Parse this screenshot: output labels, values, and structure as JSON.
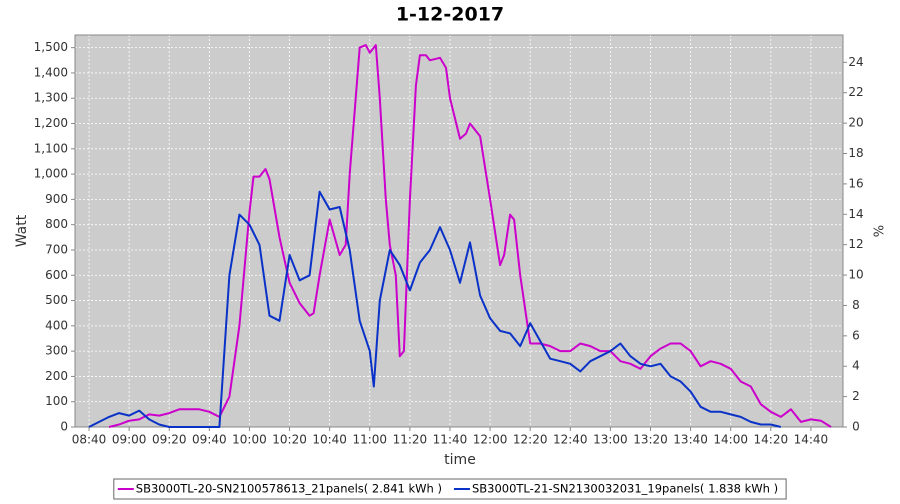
{
  "chart_data": {
    "type": "line",
    "title": "1-12-2017",
    "x_label": "time",
    "y_label": "Watt",
    "y2_label": "%",
    "xlim": [
      "08:33",
      "14:56"
    ],
    "xticks": [
      "08:40",
      "09:00",
      "09:20",
      "09:40",
      "10:00",
      "10:20",
      "10:40",
      "11:00",
      "11:20",
      "11:40",
      "12:00",
      "12:20",
      "12:40",
      "13:00",
      "13:20",
      "13:40",
      "14:00",
      "14:20",
      "14:40"
    ],
    "ylim": [
      0,
      1550
    ],
    "yticks": [
      0,
      100,
      200,
      300,
      400,
      500,
      600,
      700,
      800,
      900,
      {
        "value": 1000,
        "label": "1,000"
      },
      {
        "value": 1100,
        "label": "1,100"
      },
      {
        "value": 1200,
        "label": "1,200"
      },
      {
        "value": 1300,
        "label": "1,300"
      },
      {
        "value": 1400,
        "label": "1,400"
      },
      {
        "value": 1500,
        "label": "1,500"
      }
    ],
    "y2lim": [
      0,
      25.8
    ],
    "y2ticks": [
      0,
      2,
      4,
      6,
      8,
      10,
      12,
      14,
      16,
      18,
      20,
      22,
      24
    ],
    "grid": true,
    "legend": "bottom",
    "series": [
      {
        "name": "SB3000TL-20-SN2100578613_21panels( 2.841 kWh )",
        "color": "#cc00cc",
        "x": [
          "08:50",
          "08:55",
          "09:00",
          "09:05",
          "09:10",
          "09:15",
          "09:20",
          "09:25",
          "09:30",
          "09:35",
          "09:40",
          "09:45",
          "09:50",
          "09:55",
          "10:00",
          "10:02",
          "10:05",
          "10:08",
          "10:10",
          "10:15",
          "10:20",
          "10:25",
          "10:30",
          "10:32",
          "10:35",
          "10:40",
          "10:45",
          "10:48",
          "10:50",
          "10:55",
          "10:58",
          "11:00",
          "11:03",
          "11:05",
          "11:08",
          "11:10",
          "11:13",
          "11:15",
          "11:17",
          "11:20",
          "11:23",
          "11:25",
          "11:28",
          "11:30",
          "11:35",
          "11:38",
          "11:40",
          "11:45",
          "11:48",
          "11:50",
          "11:55",
          "12:00",
          "12:05",
          "12:07",
          "12:10",
          "12:12",
          "12:15",
          "12:20",
          "12:25",
          "12:30",
          "12:35",
          "12:40",
          "12:45",
          "12:50",
          "12:55",
          "13:00",
          "13:05",
          "13:10",
          "13:15",
          "13:20",
          "13:25",
          "13:30",
          "13:35",
          "13:40",
          "13:45",
          "13:50",
          "13:55",
          "14:00",
          "14:05",
          "14:10",
          "14:15",
          "14:20",
          "14:25",
          "14:30",
          "14:35",
          "14:40",
          "14:45",
          "14:50"
        ],
        "values": [
          0,
          10,
          25,
          30,
          50,
          45,
          55,
          70,
          70,
          70,
          60,
          40,
          120,
          400,
          850,
          990,
          990,
          1020,
          980,
          750,
          570,
          490,
          440,
          450,
          600,
          820,
          680,
          720,
          1000,
          1500,
          1510,
          1480,
          1510,
          1300,
          900,
          720,
          600,
          280,
          300,
          900,
          1350,
          1470,
          1470,
          1450,
          1460,
          1420,
          1300,
          1140,
          1160,
          1200,
          1150,
          900,
          640,
          680,
          840,
          820,
          600,
          330,
          330,
          320,
          300,
          300,
          330,
          320,
          300,
          300,
          260,
          250,
          230,
          280,
          310,
          330,
          330,
          300,
          240,
          260,
          250,
          230,
          180,
          160,
          90,
          60,
          40,
          70,
          20,
          30,
          25,
          0
        ]
      },
      {
        "name": "SB3000TL-21-SN2130032031_19panels( 1.838 kWh )",
        "color": "#0a32c8",
        "x": [
          "08:40",
          "08:45",
          "08:50",
          "08:55",
          "09:00",
          "09:05",
          "09:10",
          "09:15",
          "09:20",
          "09:25",
          "09:30",
          "09:35",
          "09:40",
          "09:45",
          "09:50",
          "09:55",
          "10:00",
          "10:05",
          "10:10",
          "10:15",
          "10:20",
          "10:25",
          "10:30",
          "10:35",
          "10:40",
          "10:45",
          "10:50",
          "10:55",
          "11:00",
          "11:02",
          "11:05",
          "11:10",
          "11:15",
          "11:20",
          "11:25",
          "11:30",
          "11:35",
          "11:40",
          "11:45",
          "11:50",
          "11:55",
          "12:00",
          "12:05",
          "12:10",
          "12:15",
          "12:20",
          "12:25",
          "12:30",
          "12:35",
          "12:40",
          "12:45",
          "12:50",
          "12:55",
          "13:00",
          "13:05",
          "13:10",
          "13:15",
          "13:20",
          "13:25",
          "13:30",
          "13:35",
          "13:40",
          "13:45",
          "13:50",
          "13:55",
          "14:00",
          "14:05",
          "14:10",
          "14:15",
          "14:20",
          "14:25"
        ],
        "values": [
          0,
          20,
          40,
          55,
          45,
          65,
          30,
          10,
          0,
          0,
          0,
          0,
          0,
          0,
          600,
          840,
          800,
          720,
          440,
          420,
          680,
          580,
          600,
          930,
          860,
          870,
          700,
          420,
          300,
          160,
          500,
          700,
          640,
          540,
          650,
          700,
          790,
          700,
          570,
          730,
          520,
          430,
          380,
          370,
          320,
          410,
          340,
          270,
          260,
          250,
          220,
          260,
          280,
          300,
          330,
          280,
          250,
          240,
          250,
          200,
          180,
          140,
          80,
          60,
          60,
          50,
          40,
          20,
          10,
          10,
          0
        ]
      }
    ]
  }
}
